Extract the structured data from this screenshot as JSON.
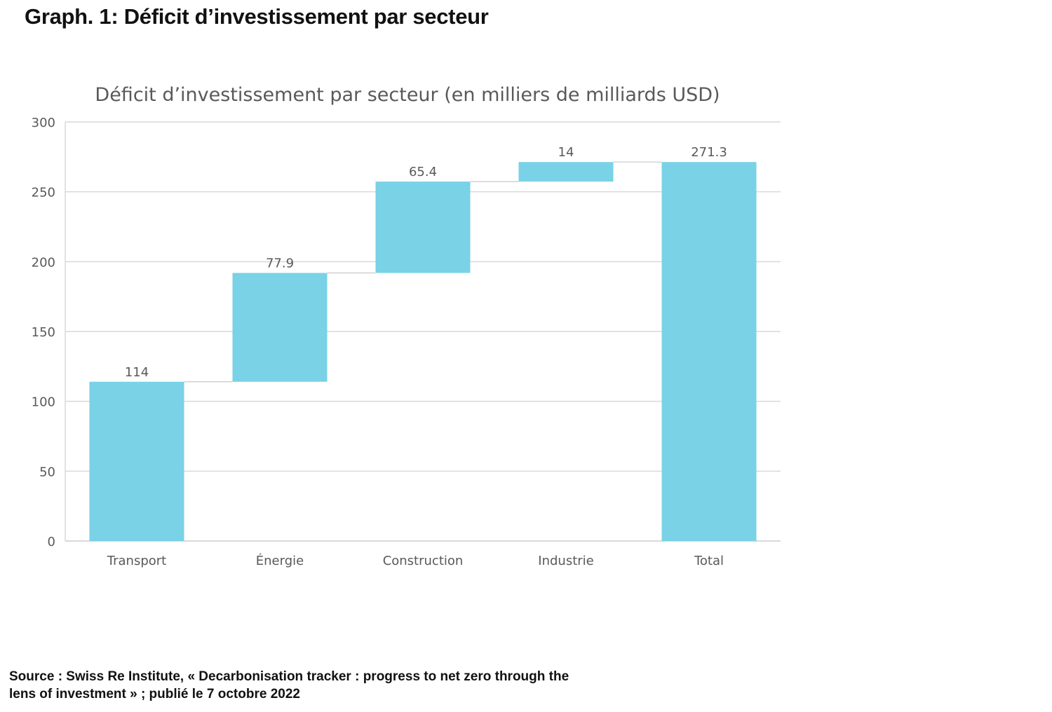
{
  "page": {
    "heading": "Graph. 1: Déficit d’investissement par secteur",
    "source_line1": "Source : Swiss Re Institute, « Decarbonisation tracker : progress to net zero through the",
    "source_line2": "lens of investment » ; publié le 7 octobre 2022"
  },
  "chart_data": {
    "type": "bar",
    "subtype": "waterfall",
    "title": "Déficit d’investissement par secteur (en milliers de milliards USD)",
    "xlabel": "",
    "ylabel": "",
    "categories": [
      "Transport",
      "Énergie",
      "Construction",
      "Industrie",
      "Total"
    ],
    "values": [
      114,
      77.9,
      65.4,
      14,
      271.3
    ],
    "data_labels": [
      "114",
      "77.9",
      "65.4",
      "14",
      "271.3"
    ],
    "is_total": [
      false,
      false,
      false,
      false,
      true
    ],
    "ylim": [
      0,
      300
    ],
    "yticks": [
      0,
      50,
      100,
      150,
      200,
      250,
      300
    ],
    "grid": true,
    "legend": "none",
    "colors": {
      "bar": "#79d2e5",
      "grid": "#d9d9d9",
      "text": "#595959",
      "connector": "#c8c8c8"
    }
  }
}
